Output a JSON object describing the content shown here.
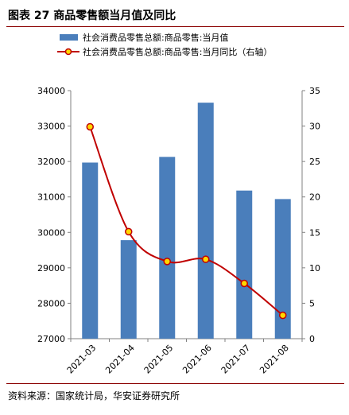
{
  "figure": {
    "title": "图表 27  商品零售额当月值及同比",
    "source": "资料来源：国家统计局，华安证券研究所"
  },
  "chart_data": {
    "type": "bar",
    "categories": [
      "2021-03",
      "2021-04",
      "2021-05",
      "2021-06",
      "2021-07",
      "2021-08"
    ],
    "series": [
      {
        "name": "社会消费品零售总额:商品零售:当月值",
        "type": "bar",
        "axis": "left",
        "values": [
          31970,
          29780,
          32130,
          33660,
          31180,
          30940
        ]
      },
      {
        "name": "社会消费品零售总额:商品零售:当月同比（右轴）",
        "type": "line",
        "axis": "right",
        "values": [
          29.9,
          15.1,
          10.9,
          11.2,
          7.8,
          3.3
        ]
      }
    ],
    "yleft": {
      "min": 27000,
      "max": 34000,
      "ticks": [
        27000,
        28000,
        29000,
        30000,
        31000,
        32000,
        33000,
        34000
      ]
    },
    "yright": {
      "min": 0,
      "max": 35,
      "ticks": [
        0,
        5,
        10,
        15,
        20,
        25,
        30,
        35
      ]
    },
    "grid": false,
    "legend_position": "top",
    "colors": {
      "bar": "#4a7ebb",
      "line": "#c00000",
      "marker_fill": "#ffd700",
      "marker_stroke": "#c00000",
      "axis": "#808080"
    }
  }
}
